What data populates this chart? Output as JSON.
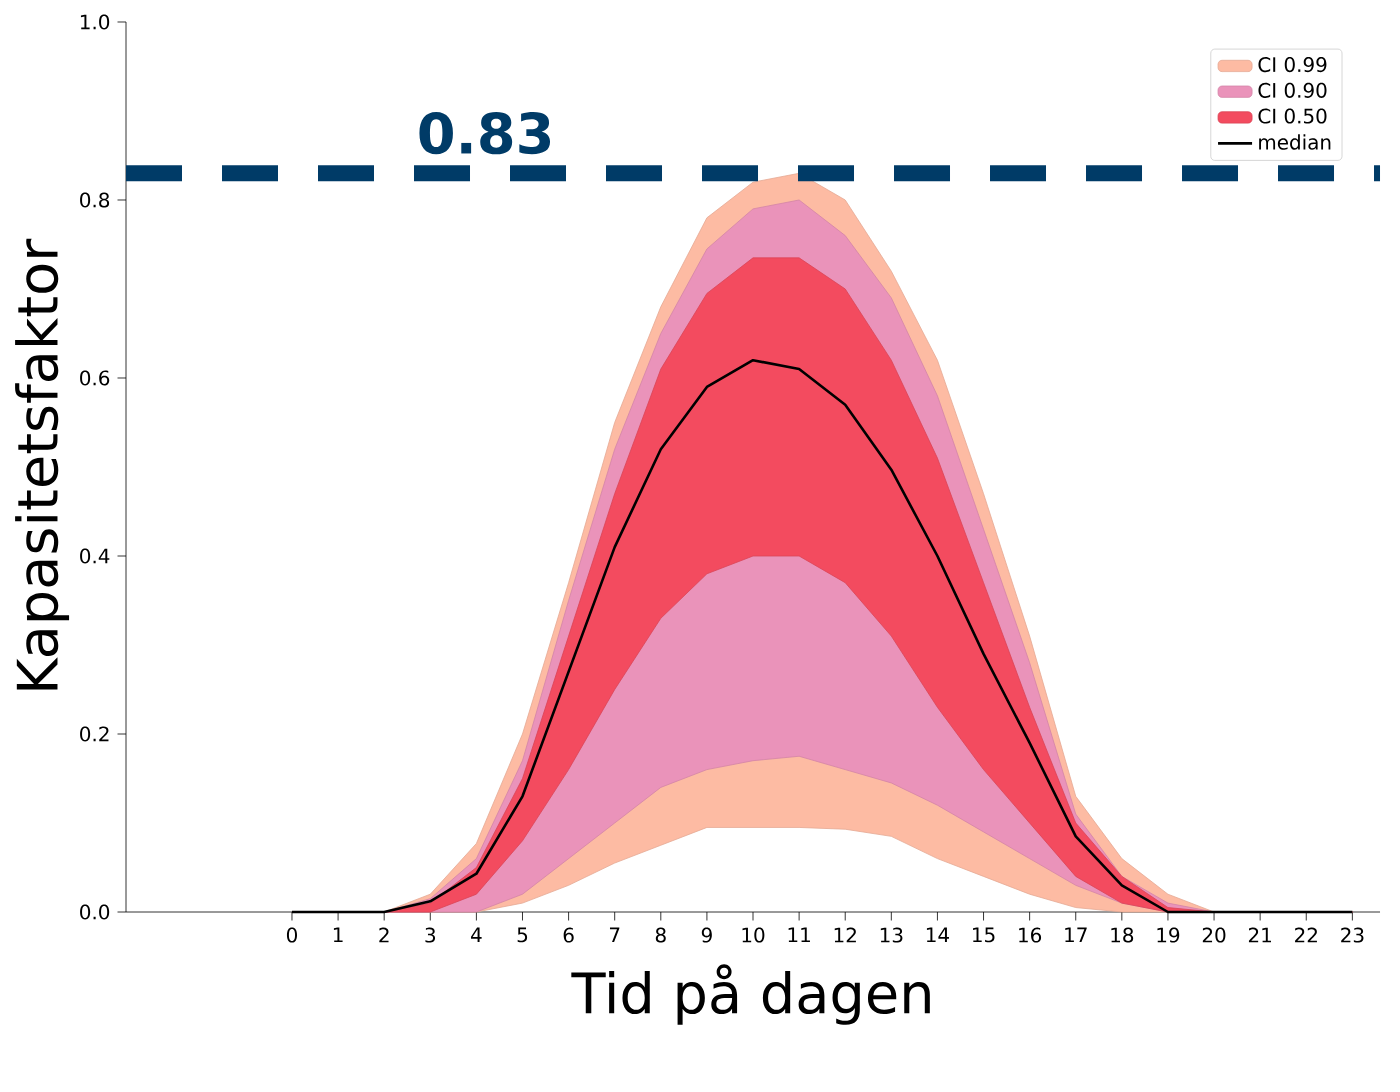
{
  "chart_data": {
    "type": "line",
    "xlabel": "Tid på dagen",
    "ylabel": "Kapasitetsfaktor",
    "x": [
      0,
      1,
      2,
      3,
      4,
      5,
      6,
      7,
      8,
      9,
      10,
      11,
      12,
      13,
      14,
      15,
      16,
      17,
      18,
      19,
      20,
      21,
      22,
      23
    ],
    "series": [
      {
        "name": "CI 0.99",
        "type": "area",
        "color": "#fdbba3",
        "values": [
          null,
          null,
          null,
          null,
          null,
          null,
          null,
          null,
          null,
          null,
          null,
          null,
          null,
          null,
          null,
          null,
          null,
          null,
          null,
          null,
          null,
          null,
          null,
          null
        ],
        "lower": [
          0,
          0,
          0,
          0,
          0,
          0.01,
          0.03,
          0.055,
          0.075,
          0.095,
          0.095,
          0.095,
          0.093,
          0.085,
          0.06,
          0.04,
          0.02,
          0.005,
          0,
          0,
          0,
          0,
          0,
          0
        ],
        "upper": [
          0,
          0,
          0,
          0.02,
          0.077,
          0.2,
          0.37,
          0.55,
          0.68,
          0.78,
          0.82,
          0.83,
          0.8,
          0.72,
          0.62,
          0.47,
          0.31,
          0.13,
          0.06,
          0.02,
          0,
          0,
          0,
          0
        ]
      },
      {
        "name": "CI 0.90",
        "type": "area",
        "color": "#ea93ba",
        "values": [
          null,
          null,
          null,
          null,
          null,
          null,
          null,
          null,
          null,
          null,
          null,
          null,
          null,
          null,
          null,
          null,
          null,
          null,
          null,
          null,
          null,
          null,
          null,
          null
        ],
        "lower": [
          0,
          0,
          0,
          0,
          0,
          0.02,
          0.06,
          0.1,
          0.14,
          0.16,
          0.17,
          0.175,
          0.16,
          0.145,
          0.12,
          0.09,
          0.06,
          0.03,
          0.01,
          0,
          0,
          0,
          0,
          0
        ],
        "upper": [
          0,
          0,
          0,
          0.015,
          0.06,
          0.17,
          0.35,
          0.52,
          0.65,
          0.745,
          0.79,
          0.8,
          0.76,
          0.69,
          0.58,
          0.43,
          0.28,
          0.11,
          0.04,
          0.01,
          0,
          0,
          0,
          0
        ]
      },
      {
        "name": "CI 0.50",
        "type": "area",
        "color": "#f34b5f",
        "values": [
          null,
          null,
          null,
          null,
          null,
          null,
          null,
          null,
          null,
          null,
          null,
          null,
          null,
          null,
          null,
          null,
          null,
          null,
          null,
          null,
          null,
          null,
          null,
          null
        ],
        "lower": [
          0,
          0,
          0,
          0,
          0.02,
          0.08,
          0.16,
          0.25,
          0.33,
          0.38,
          0.4,
          0.4,
          0.37,
          0.31,
          0.23,
          0.16,
          0.1,
          0.04,
          0.01,
          0,
          0,
          0,
          0,
          0
        ],
        "upper": [
          0,
          0,
          0,
          0.01,
          0.05,
          0.15,
          0.31,
          0.47,
          0.61,
          0.695,
          0.735,
          0.735,
          0.7,
          0.62,
          0.51,
          0.37,
          0.23,
          0.1,
          0.04,
          0.005,
          0,
          0,
          0,
          0
        ]
      },
      {
        "name": "median",
        "color": "#000000",
        "values": [
          0,
          0,
          0,
          0.012,
          0.043,
          0.13,
          0.27,
          0.41,
          0.52,
          0.59,
          0.62,
          0.61,
          0.57,
          0.497,
          0.4,
          0.29,
          0.19,
          0.085,
          0.03,
          0,
          0,
          0,
          0,
          0
        ]
      }
    ],
    "xlim": [
      -3.6,
      23.6
    ],
    "xticks": [
      0,
      1,
      2,
      3,
      4,
      5,
      6,
      7,
      8,
      9,
      10,
      11,
      12,
      13,
      14,
      15,
      16,
      17,
      18,
      19,
      20,
      21,
      22,
      23
    ],
    "ylim": [
      0,
      1
    ],
    "yticks": [
      {
        "value": 0,
        "label": "0.0"
      },
      {
        "value": 0.2,
        "label": "0.2"
      },
      {
        "value": 0.4,
        "label": "0.4"
      },
      {
        "value": 0.6,
        "label": "0.6"
      },
      {
        "value": 0.8,
        "label": "0.8"
      },
      {
        "value": 1,
        "label": "1.0"
      }
    ],
    "ref_lines": [
      {
        "axis": "y",
        "value": 0.83,
        "label": "0.83",
        "color": "#003b67",
        "line_style": "dashed"
      }
    ],
    "grid": false,
    "legend": "top right",
    "marker": "none",
    "line_style": "solid"
  }
}
